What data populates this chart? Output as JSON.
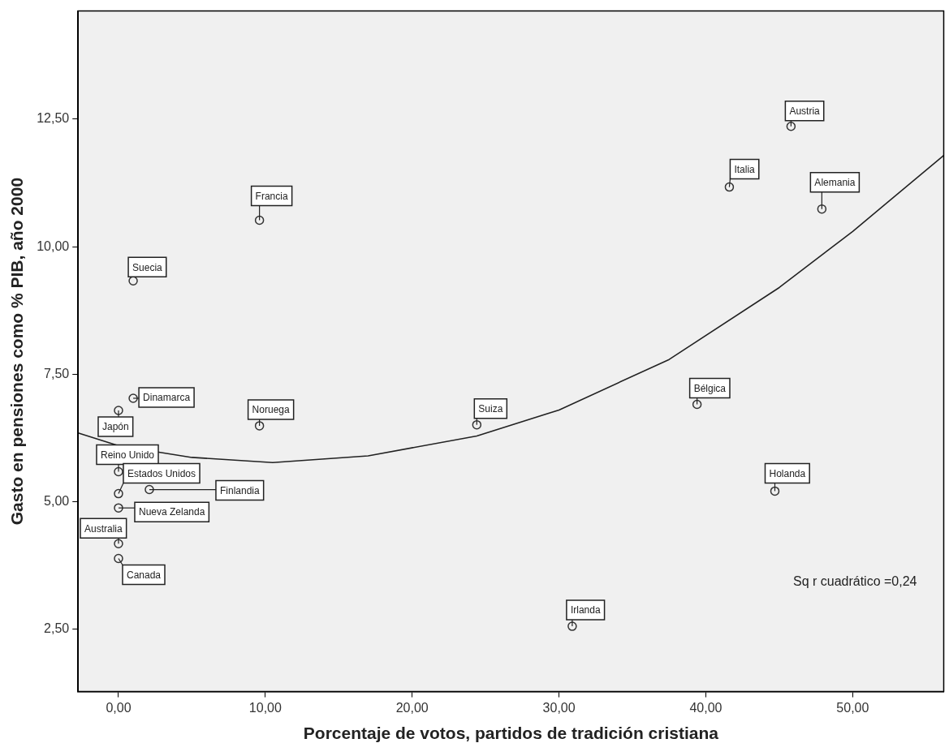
{
  "chart_data": {
    "type": "scatter",
    "xlabel": "Porcentaje de votos, partidos de tradición cristiana",
    "ylabel": "Gasto en pensiones como % PIB, año 2000",
    "xlim": [
      -2.75,
      56.2
    ],
    "xticks": [
      {
        "value": 0,
        "label": "0,00"
      },
      {
        "value": 10,
        "label": "10,00"
      },
      {
        "value": 20,
        "label": "20,00"
      },
      {
        "value": 30,
        "label": "30,00"
      },
      {
        "value": 40,
        "label": "40,00"
      },
      {
        "value": 50,
        "label": "50,00"
      }
    ],
    "ylim": [
      1.28,
      14.62
    ],
    "yticks": [
      {
        "value": 2.5,
        "label": "2,50"
      },
      {
        "value": 5,
        "label": "5,00"
      },
      {
        "value": 7.5,
        "label": "7,50"
      },
      {
        "value": 10,
        "label": "10,00"
      },
      {
        "value": 12.5,
        "label": "12,50"
      }
    ],
    "grid": false,
    "legend": false,
    "series": [
      {
        "type": "scatter",
        "color": "#333333",
        "marker": "circle",
        "x": [
          45.8,
          41.6,
          47.9,
          9.6,
          1,
          1,
          0,
          9.6,
          24.4,
          39.4,
          0,
          0,
          2.1,
          0,
          0,
          0,
          44.7,
          30.9
        ],
        "values": [
          12.36,
          11.17,
          10.74,
          10.52,
          9.33,
          7.03,
          6.79,
          6.49,
          6.51,
          6.91,
          5.59,
          5.16,
          5.24,
          4.88,
          4.18,
          3.89,
          5.21,
          2.56
        ]
      },
      {
        "type": "line",
        "color": "#222222",
        "marker": "none",
        "x": [
          -2.75,
          0,
          5,
          10.5,
          17,
          24.4,
          30,
          37.5,
          45,
          50,
          56.2
        ],
        "values": [
          6.35,
          6.1,
          5.87,
          5.77,
          5.9,
          6.29,
          6.8,
          7.79,
          9.2,
          10.3,
          11.79
        ]
      }
    ],
    "annotations": [
      {
        "text": "Austria",
        "x": 45.8,
        "y": 12.36
      },
      {
        "text": "Italia",
        "x": 41.6,
        "y": 11.17
      },
      {
        "text": "Alemania",
        "x": 47.9,
        "y": 10.74
      },
      {
        "text": "Francia",
        "x": 9.6,
        "y": 10.52
      },
      {
        "text": "Suecia",
        "x": 1,
        "y": 9.33
      },
      {
        "text": "Dinamarca",
        "x": 1,
        "y": 7.03
      },
      {
        "text": "Japón",
        "x": 0,
        "y": 6.79
      },
      {
        "text": "Noruega",
        "x": 9.6,
        "y": 6.49
      },
      {
        "text": "Suiza",
        "x": 24.4,
        "y": 6.51
      },
      {
        "text": "Bélgica",
        "x": 39.4,
        "y": 6.91
      },
      {
        "text": "Reino Unido",
        "x": 0,
        "y": 5.59
      },
      {
        "text": "Estados Unidos",
        "x": 0,
        "y": 5.16
      },
      {
        "text": "Finlandia",
        "x": 2.1,
        "y": 5.24
      },
      {
        "text": "Nueva Zelanda",
        "x": 0,
        "y": 4.88
      },
      {
        "text": "Australia",
        "x": 0,
        "y": 4.18
      },
      {
        "text": "Canada",
        "x": 0,
        "y": 3.89
      },
      {
        "text": "Holanda",
        "x": 44.7,
        "y": 5.21
      },
      {
        "text": "Irlanda",
        "x": 30.9,
        "y": 2.56
      },
      "Sq r cuadrático =0,24"
    ]
  }
}
